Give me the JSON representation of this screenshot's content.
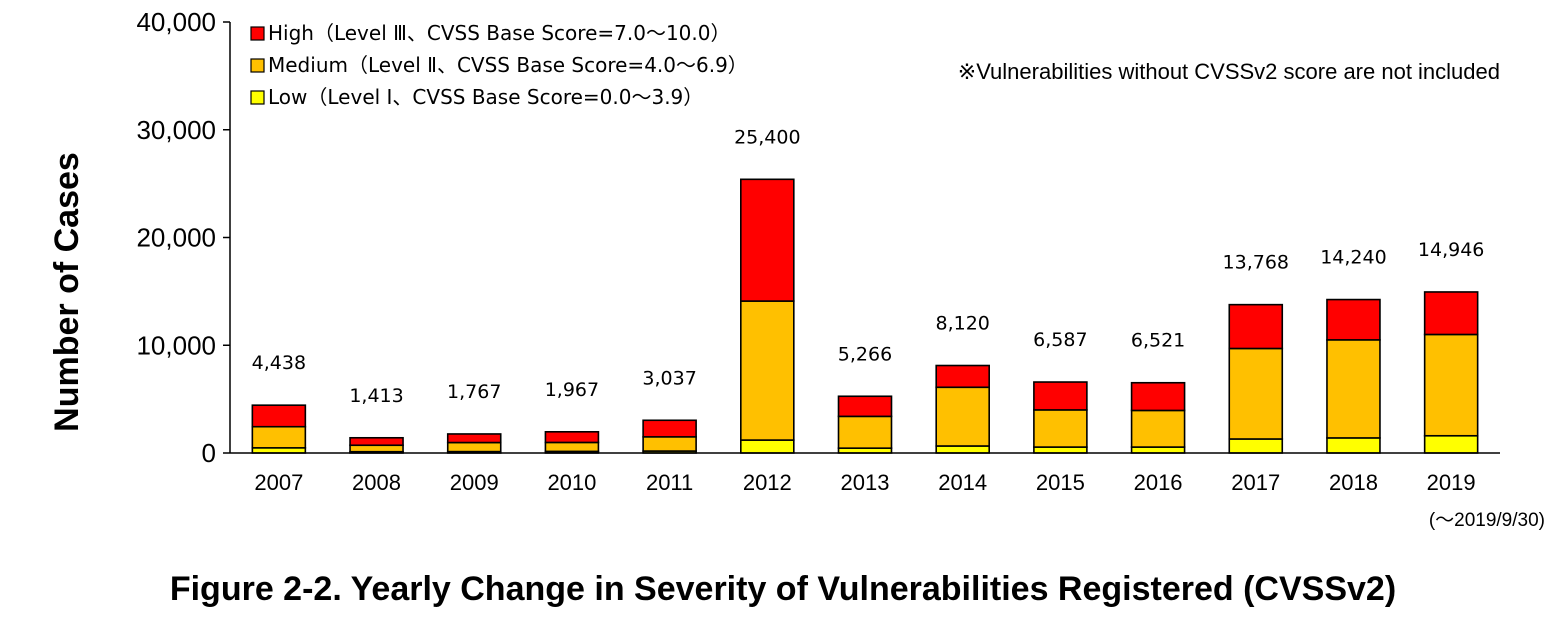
{
  "chart_data": {
    "type": "bar",
    "stacked": true,
    "title": "Figure 2-2. Yearly Change in Severity of Vulnerabilities Registered (CVSSv2)",
    "ylabel": "Number of Cases",
    "xlabel": "",
    "ylim": [
      0,
      40000
    ],
    "yticks": [
      0,
      10000,
      20000,
      30000,
      40000
    ],
    "ytick_labels": [
      "0",
      "10,000",
      "20,000",
      "30,000",
      "40,000"
    ],
    "categories": [
      "2007",
      "2008",
      "2009",
      "2010",
      "2011",
      "2012",
      "2013",
      "2014",
      "2015",
      "2016",
      "2017",
      "2018",
      "2019"
    ],
    "last_category_note": "(～2019/9/30)",
    "series": [
      {
        "name": "Low（Level Ⅰ、CVSS Base Score=0.0～3.9）",
        "color": "#FFFF00",
        "values": [
          480,
          120,
          130,
          150,
          180,
          1200,
          450,
          650,
          550,
          550,
          1300,
          1400,
          1600
        ]
      },
      {
        "name": "Medium（Level Ⅱ、CVSS Base Score=4.0～6.9）",
        "color": "#FFC000",
        "values": [
          1960,
          600,
          840,
          830,
          1320,
          12900,
          2950,
          5450,
          3450,
          3400,
          8400,
          9100,
          9400
        ]
      },
      {
        "name": "High（Level Ⅲ、CVSS Base Score=7.0～10.0）",
        "color": "#FF0000",
        "values": [
          1998,
          693,
          797,
          987,
          1537,
          11300,
          1866,
          2020,
          2587,
          2571,
          4068,
          3740,
          3946
        ]
      }
    ],
    "totals": [
      4438,
      1413,
      1767,
      1967,
      3037,
      25400,
      5266,
      8120,
      6587,
      6521,
      13768,
      14240,
      14946
    ],
    "total_labels": [
      "4,438",
      "1,413",
      "1,767",
      "1,967",
      "3,037",
      "25,400",
      "5,266",
      "8,120",
      "6,587",
      "6,521",
      "13,768",
      "14,240",
      "14,946"
    ],
    "legend_order": [
      "High（Level Ⅲ、CVSS Base Score=7.0～10.0）",
      "Medium（Level Ⅱ、CVSS Base Score=4.0～6.9）",
      "Low（Level Ⅰ、CVSS Base Score=0.0～3.9）"
    ],
    "legend_placement": "top-left",
    "annotation": "※Vulnerabilities without CVSSv2 score are not included",
    "grid": false
  }
}
